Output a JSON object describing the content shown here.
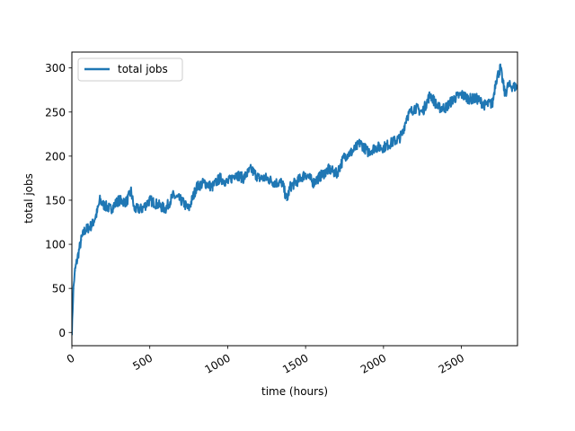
{
  "chart_data": {
    "type": "line",
    "xlabel": "time (hours)",
    "ylabel": "total jobs",
    "xlim": [
      0,
      2860
    ],
    "ylim": [
      -15,
      318
    ],
    "xticks": [
      0,
      500,
      1000,
      1500,
      2000,
      2500
    ],
    "yticks": [
      0,
      50,
      100,
      150,
      200,
      250,
      300
    ],
    "xtick_labels": [
      "0",
      "500",
      "1000",
      "1500",
      "2000",
      "2500"
    ],
    "ytick_labels": [
      "0",
      "50",
      "100",
      "150",
      "200",
      "250",
      "300"
    ],
    "xtick_rotation_deg": 30,
    "grid": false,
    "legend_placement": "upper-left",
    "colors": {
      "series": "#1f77b4"
    },
    "series": [
      {
        "name": "total jobs",
        "x": [
          0,
          10,
          20,
          40,
          60,
          80,
          100,
          130,
          160,
          180,
          200,
          250,
          300,
          350,
          380,
          400,
          450,
          500,
          550,
          600,
          650,
          700,
          750,
          800,
          850,
          900,
          950,
          1000,
          1050,
          1100,
          1150,
          1200,
          1250,
          1300,
          1350,
          1380,
          1400,
          1450,
          1500,
          1550,
          1600,
          1650,
          1700,
          1750,
          1800,
          1850,
          1900,
          1950,
          2000,
          2050,
          2100,
          2120,
          2150,
          2200,
          2250,
          2300,
          2350,
          2400,
          2450,
          2500,
          2550,
          2600,
          2650,
          2700,
          2720,
          2750,
          2780,
          2800,
          2860
        ],
        "y": [
          0,
          50,
          70,
          88,
          105,
          115,
          118,
          122,
          135,
          150,
          145,
          140,
          150,
          148,
          160,
          140,
          140,
          150,
          145,
          140,
          155,
          150,
          140,
          165,
          170,
          165,
          175,
          170,
          180,
          175,
          185,
          175,
          175,
          170,
          170,
          150,
          165,
          172,
          180,
          170,
          178,
          185,
          180,
          200,
          205,
          215,
          205,
          210,
          210,
          215,
          220,
          225,
          245,
          255,
          250,
          270,
          255,
          255,
          265,
          270,
          265,
          265,
          258,
          260,
          285,
          300,
          270,
          280,
          278
        ]
      }
    ]
  }
}
